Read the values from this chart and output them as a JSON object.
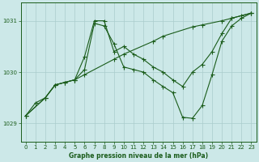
{
  "bg_color": "#cce8e8",
  "grid_color": "#aacccc",
  "line_color": "#1a5c1a",
  "title": "Graphe pression niveau de la mer (hPa)",
  "xlim": [
    -0.5,
    23.5
  ],
  "ylim": [
    1028.65,
    1031.35
  ],
  "yticks": [
    1029,
    1030,
    1031
  ],
  "xticks": [
    0,
    1,
    2,
    3,
    4,
    5,
    6,
    7,
    8,
    9,
    10,
    11,
    12,
    13,
    14,
    15,
    16,
    17,
    18,
    19,
    20,
    21,
    22,
    23
  ],
  "line1_x": [
    0,
    1,
    2,
    3,
    4,
    5,
    6,
    7,
    8,
    9,
    10,
    11,
    12,
    13,
    14,
    15,
    16,
    17,
    18,
    19,
    20,
    21,
    22,
    23
  ],
  "line1_y": [
    1029.15,
    1029.4,
    1029.5,
    1029.75,
    1029.8,
    1029.85,
    1030.05,
    1030.95,
    1030.9,
    1030.55,
    1030.1,
    1030.05,
    1030.0,
    1029.85,
    1029.72,
    1029.6,
    1029.12,
    1029.1,
    1029.35,
    1029.95,
    1030.6,
    1030.9,
    1031.05,
    1031.15
  ],
  "line2_x": [
    0,
    2,
    3,
    4,
    5,
    6,
    7,
    8,
    9,
    10,
    11,
    12,
    13,
    14,
    15,
    16,
    17,
    18,
    19,
    20,
    21,
    22,
    23
  ],
  "line2_y": [
    1029.15,
    1029.5,
    1029.75,
    1029.8,
    1029.85,
    1030.3,
    1031.0,
    1031.0,
    1030.4,
    1030.5,
    1030.35,
    1030.25,
    1030.1,
    1030.0,
    1029.85,
    1029.72,
    1030.0,
    1030.15,
    1030.4,
    1030.75,
    1031.05,
    1031.1,
    1031.15
  ],
  "line3_x": [
    0,
    2,
    3,
    5,
    6,
    9,
    10,
    13,
    14,
    17,
    18,
    20,
    21,
    23
  ],
  "line3_y": [
    1029.15,
    1029.5,
    1029.75,
    1029.85,
    1029.95,
    1030.25,
    1030.35,
    1030.6,
    1030.7,
    1030.88,
    1030.92,
    1031.0,
    1031.05,
    1031.15
  ]
}
